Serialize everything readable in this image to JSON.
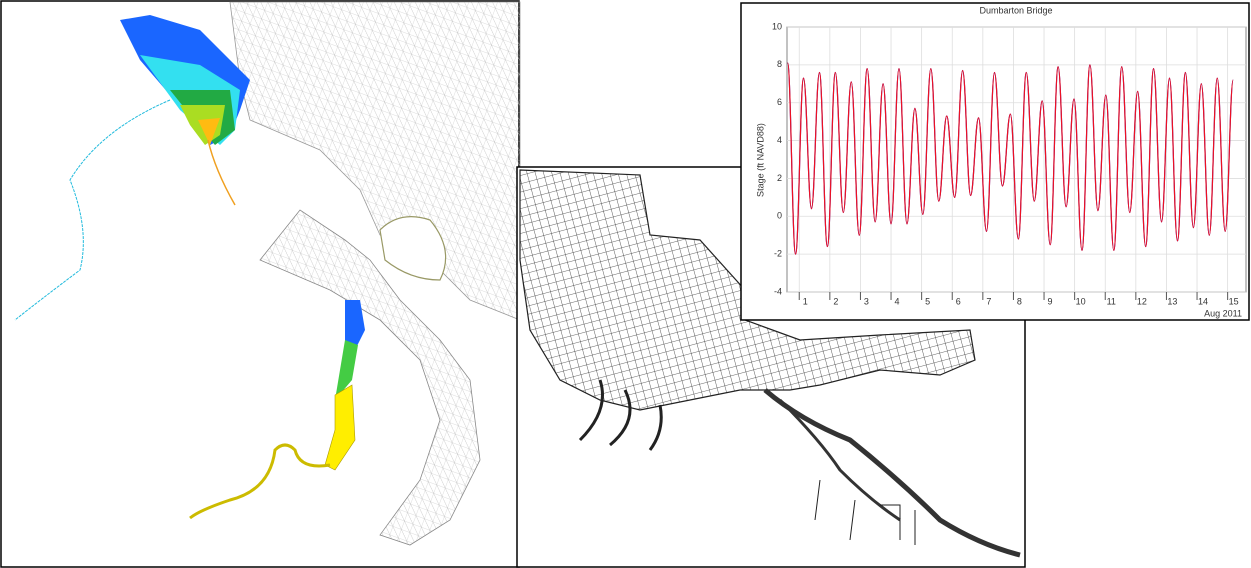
{
  "chart_data": {
    "type": "line",
    "title": "Dumbarton Bridge",
    "y_label": "Stage (ft NAVD88)",
    "x_label": "Aug 2011",
    "x": [
      0.62,
      0.88,
      1.14,
      1.4,
      1.66,
      1.92,
      2.18,
      2.44,
      2.7,
      2.96,
      3.22,
      3.48,
      3.74,
      4.0,
      4.26,
      4.52,
      4.78,
      5.04,
      5.3,
      5.56,
      5.82,
      6.08,
      6.34,
      6.6,
      6.86,
      7.12,
      7.38,
      7.64,
      7.9,
      8.16,
      8.42,
      8.68,
      8.94,
      9.2,
      9.46,
      9.72,
      9.98,
      10.24,
      10.5,
      10.76,
      11.02,
      11.28,
      11.54,
      11.8,
      12.06,
      12.32,
      12.58,
      12.84,
      13.1,
      13.36,
      13.62,
      13.88,
      14.14,
      14.4,
      14.66,
      14.92,
      15.18
    ],
    "series": [
      {
        "color": "#2233dd",
        "values": [
          8.1,
          -2.0,
          7.3,
          0.4,
          7.6,
          -1.6,
          7.6,
          0.2,
          7.1,
          -1.0,
          7.8,
          -0.3,
          7.0,
          -0.4,
          7.8,
          -0.4,
          5.7,
          0.1,
          7.8,
          0.8,
          5.3,
          1.0,
          7.7,
          1.1,
          5.2,
          -0.8,
          7.6,
          1.6,
          5.4,
          -1.2,
          7.6,
          0.8,
          6.1,
          -1.5,
          7.9,
          0.5,
          6.2,
          -1.8,
          8.0,
          0.3,
          6.4,
          -1.8,
          7.9,
          0.2,
          6.6,
          -1.6,
          7.8,
          -0.3,
          7.3,
          -1.3,
          7.6,
          -0.6,
          7.0,
          -1.0,
          7.3,
          -0.8,
          7.2
        ]
      },
      {
        "color": "#ee1122",
        "values": [
          8.1,
          -2.0,
          7.3,
          0.4,
          7.6,
          -1.6,
          7.6,
          0.2,
          7.1,
          -1.0,
          7.8,
          -0.3,
          7.0,
          -0.4,
          7.8,
          -0.4,
          5.7,
          0.1,
          7.8,
          0.8,
          5.3,
          1.0,
          7.7,
          1.1,
          5.2,
          -0.8,
          7.6,
          1.6,
          5.4,
          -1.2,
          7.6,
          0.8,
          6.1,
          -1.5,
          7.9,
          0.5,
          6.2,
          -1.8,
          8.0,
          0.3,
          6.4,
          -1.8,
          7.9,
          0.2,
          6.6,
          -1.6,
          7.8,
          -0.3,
          7.3,
          -1.3,
          7.6,
          -0.6,
          7.0,
          -1.0,
          7.3,
          -0.8,
          7.2
        ]
      }
    ],
    "xlim": [
      0.6,
      15.6
    ],
    "xticks": [
      1,
      2,
      3,
      4,
      5,
      6,
      7,
      8,
      9,
      10,
      11,
      12,
      13,
      14,
      15
    ],
    "ylim": [
      -4,
      10
    ],
    "yticks": [
      -4,
      -2,
      0,
      2,
      4,
      6,
      8,
      10
    ],
    "grid": true
  }
}
